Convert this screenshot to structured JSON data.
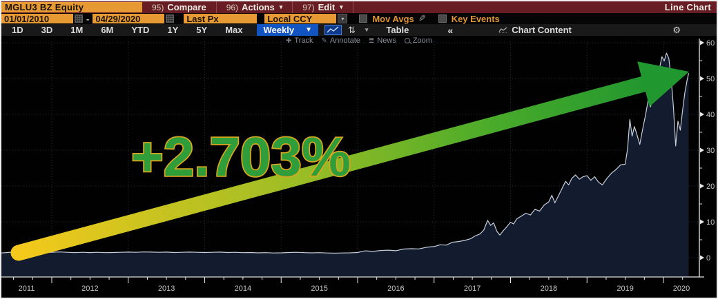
{
  "header": {
    "ticker": "MGLU3 BZ Equity",
    "menus": [
      {
        "prefix": "95)",
        "label": "Compare"
      },
      {
        "prefix": "96)",
        "label": "Actions"
      },
      {
        "prefix": "97)",
        "label": "Edit"
      }
    ],
    "view_label": "Line Chart"
  },
  "controls": {
    "date_from": "01/01/2010",
    "date_sep": "-",
    "date_to": "04/29/2020",
    "price_field": "Last Px",
    "currency": "Local CCY",
    "mov_avgs_label": "Mov Avgs",
    "key_events_label": "Key Events"
  },
  "toolbar": {
    "ranges": [
      "1D",
      "3D",
      "1M",
      "6M",
      "YTD",
      "1Y",
      "5Y",
      "Max"
    ],
    "period": "Weekly",
    "table_label": "Table",
    "chart_content_label": "Chart Content"
  },
  "icons": {
    "caret_down": "▼",
    "caret_small": "▾",
    "gear": "⚙",
    "double_left": "«",
    "sort": "⇅",
    "pencil": "✎",
    "plus": "✚",
    "annotate": "✎",
    "news": "≣"
  },
  "mini_toolbar": {
    "items": [
      "Track",
      "Annotate",
      "News",
      "Zoom"
    ]
  },
  "chart_data": {
    "type": "area",
    "title": "MGLU3 BZ Equity — weekly last price",
    "series_name": "Last Px",
    "x_year_labels": [
      "2011",
      "2012",
      "2013",
      "2014",
      "2015",
      "2016",
      "2017",
      "2018",
      "2019",
      "2020"
    ],
    "x_years": [
      2011,
      2012,
      2013,
      2014,
      2015,
      2016,
      2017,
      2018,
      2019,
      2020
    ],
    "ylim": [
      0,
      60
    ],
    "y_ticks": [
      0,
      10,
      20,
      30,
      40,
      50,
      60
    ],
    "grid": "dotted",
    "annotation": {
      "label": "+2.703%"
    },
    "points": [
      [
        2011.34,
        1.3
      ],
      [
        2011.42,
        1.45
      ],
      [
        2011.5,
        1.6
      ],
      [
        2011.55,
        1.45
      ],
      [
        2011.62,
        1.4
      ],
      [
        2011.7,
        1.6
      ],
      [
        2011.78,
        1.8
      ],
      [
        2011.85,
        1.55
      ],
      [
        2011.92,
        1.45
      ],
      [
        2012.0,
        1.5
      ],
      [
        2012.1,
        1.6
      ],
      [
        2012.2,
        1.5
      ],
      [
        2012.3,
        1.4
      ],
      [
        2012.4,
        1.5
      ],
      [
        2012.5,
        1.42
      ],
      [
        2012.6,
        1.5
      ],
      [
        2012.7,
        1.4
      ],
      [
        2012.8,
        1.45
      ],
      [
        2012.9,
        1.5
      ],
      [
        2013.0,
        1.55
      ],
      [
        2013.1,
        1.5
      ],
      [
        2013.2,
        1.6
      ],
      [
        2013.3,
        1.55
      ],
      [
        2013.4,
        1.5
      ],
      [
        2013.5,
        1.55
      ],
      [
        2013.6,
        1.45
      ],
      [
        2013.7,
        1.5
      ],
      [
        2013.8,
        1.55
      ],
      [
        2013.9,
        1.5
      ],
      [
        2014.0,
        1.45
      ],
      [
        2014.1,
        1.5
      ],
      [
        2014.2,
        1.55
      ],
      [
        2014.3,
        1.45
      ],
      [
        2014.4,
        1.5
      ],
      [
        2014.5,
        1.4
      ],
      [
        2014.6,
        1.45
      ],
      [
        2014.7,
        1.35
      ],
      [
        2014.8,
        1.4
      ],
      [
        2014.9,
        1.3
      ],
      [
        2015.0,
        1.35
      ],
      [
        2015.1,
        1.45
      ],
      [
        2015.2,
        1.5
      ],
      [
        2015.3,
        1.4
      ],
      [
        2015.4,
        1.35
      ],
      [
        2015.5,
        1.4
      ],
      [
        2015.6,
        1.3
      ],
      [
        2015.7,
        1.25
      ],
      [
        2015.8,
        1.3
      ],
      [
        2015.9,
        1.35
      ],
      [
        2016.0,
        1.45
      ],
      [
        2016.1,
        1.9
      ],
      [
        2016.2,
        1.75
      ],
      [
        2016.3,
        2.0
      ],
      [
        2016.4,
        2.1
      ],
      [
        2016.5,
        1.95
      ],
      [
        2016.6,
        2.4
      ],
      [
        2016.7,
        2.5
      ],
      [
        2016.8,
        2.45
      ],
      [
        2016.9,
        2.9
      ],
      [
        2017.0,
        3.1
      ],
      [
        2017.08,
        3.6
      ],
      [
        2017.16,
        3.5
      ],
      [
        2017.24,
        4.3
      ],
      [
        2017.32,
        4.5
      ],
      [
        2017.4,
        4.8
      ],
      [
        2017.48,
        5.3
      ],
      [
        2017.54,
        6.1
      ],
      [
        2017.6,
        6.6
      ],
      [
        2017.65,
        7.7
      ],
      [
        2017.7,
        10.4
      ],
      [
        2017.74,
        9.0
      ],
      [
        2017.78,
        9.7
      ],
      [
        2017.82,
        7.4
      ],
      [
        2017.86,
        6.3
      ],
      [
        2017.9,
        7.4
      ],
      [
        2017.95,
        8.6
      ],
      [
        2018.0,
        9.9
      ],
      [
        2018.04,
        9.4
      ],
      [
        2018.08,
        10.8
      ],
      [
        2018.14,
        11.6
      ],
      [
        2018.2,
        12.4
      ],
      [
        2018.26,
        11.9
      ],
      [
        2018.32,
        13.5
      ],
      [
        2018.38,
        13.0
      ],
      [
        2018.44,
        14.7
      ],
      [
        2018.5,
        15.6
      ],
      [
        2018.54,
        17.4
      ],
      [
        2018.58,
        15.3
      ],
      [
        2018.62,
        17.0
      ],
      [
        2018.68,
        19.6
      ],
      [
        2018.72,
        21.3
      ],
      [
        2018.76,
        20.3
      ],
      [
        2018.8,
        22.1
      ],
      [
        2018.85,
        23.1
      ],
      [
        2018.9,
        21.9
      ],
      [
        2018.95,
        22.6
      ],
      [
        2019.0,
        22.9
      ],
      [
        2019.05,
        21.6
      ],
      [
        2019.1,
        22.6
      ],
      [
        2019.15,
        21.1
      ],
      [
        2019.2,
        20.3
      ],
      [
        2019.26,
        22.1
      ],
      [
        2019.32,
        23.6
      ],
      [
        2019.38,
        24.6
      ],
      [
        2019.44,
        25.9
      ],
      [
        2019.5,
        26.1
      ],
      [
        2019.53,
        30.2
      ],
      [
        2019.56,
        38.6
      ],
      [
        2019.59,
        33.9
      ],
      [
        2019.62,
        36.6
      ],
      [
        2019.65,
        34.6
      ],
      [
        2019.69,
        31.6
      ],
      [
        2019.73,
        36.1
      ],
      [
        2019.77,
        40.3
      ],
      [
        2019.8,
        43.9
      ],
      [
        2019.83,
        42.1
      ],
      [
        2019.86,
        44.6
      ],
      [
        2019.89,
        46.6
      ],
      [
        2019.92,
        49.1
      ],
      [
        2019.95,
        53.1
      ],
      [
        2019.98,
        56.1
      ],
      [
        2020.01,
        54.9
      ],
      [
        2020.04,
        57.1
      ],
      [
        2020.07,
        55.6
      ],
      [
        2020.1,
        50.1
      ],
      [
        2020.13,
        42.1
      ],
      [
        2020.16,
        31.2
      ],
      [
        2020.19,
        38.1
      ],
      [
        2020.22,
        35.6
      ],
      [
        2020.25,
        41.1
      ],
      [
        2020.28,
        46.1
      ],
      [
        2020.31,
        49.6
      ],
      [
        2020.33,
        51.5
      ]
    ]
  },
  "colors": {
    "maroon": "#671d23",
    "accent_orange": "#e79a33",
    "selected_blue": "#1254c2",
    "area_fill": "#131b2e",
    "price_line": "#c7cfdb",
    "grid": "#23333b",
    "axis": "#e8e8e8",
    "tick_text": "#c9c9c9",
    "arrow_gold": "#f5c91b",
    "arrow_green": "#21972f",
    "annotation_fill": "#2f9e3a",
    "annotation_stroke": "#d7a71f"
  }
}
